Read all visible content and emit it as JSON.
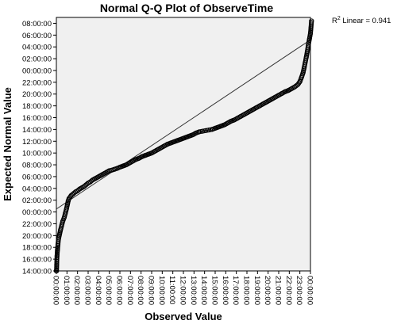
{
  "chart_data": {
    "type": "scatter",
    "title": "Normal Q-Q Plot of ObserveTime",
    "xlabel": "Observed Value",
    "ylabel": "Expected Normal Value",
    "annotation": {
      "label": "R",
      "superscript": "2",
      "text": " Linear = 0.941"
    },
    "x_unit": "hours",
    "xlim": [
      0,
      24
    ],
    "ylim": [
      -10,
      33
    ],
    "x_ticks": [
      {
        "value": 0,
        "label": "00:00:00"
      },
      {
        "value": 1,
        "label": "01:00:00"
      },
      {
        "value": 2,
        "label": "02:00:00"
      },
      {
        "value": 3,
        "label": "03:00:00"
      },
      {
        "value": 4,
        "label": "04:00:00"
      },
      {
        "value": 5,
        "label": "05:00:00"
      },
      {
        "value": 6,
        "label": "06:00:00"
      },
      {
        "value": 7,
        "label": "07:00:00"
      },
      {
        "value": 8,
        "label": "08:00:00"
      },
      {
        "value": 9,
        "label": "09:00:00"
      },
      {
        "value": 10,
        "label": "10:00:00"
      },
      {
        "value": 11,
        "label": "11:00:00"
      },
      {
        "value": 12,
        "label": "12:00:00"
      },
      {
        "value": 13,
        "label": "13:00:00"
      },
      {
        "value": 14,
        "label": "14:00:00"
      },
      {
        "value": 15,
        "label": "15:00:00"
      },
      {
        "value": 16,
        "label": "16:00:00"
      },
      {
        "value": 17,
        "label": "17:00:00"
      },
      {
        "value": 18,
        "label": "18:00:00"
      },
      {
        "value": 19,
        "label": "19:00:00"
      },
      {
        "value": 20,
        "label": "20:00:00"
      },
      {
        "value": 21,
        "label": "21:00:00"
      },
      {
        "value": 22,
        "label": "22:00:00"
      },
      {
        "value": 23,
        "label": "23:00:00"
      },
      {
        "value": 24,
        "label": "00:00:00"
      }
    ],
    "y_ticks": [
      {
        "value": -10,
        "label": "14:00:00"
      },
      {
        "value": -8,
        "label": "16:00:00"
      },
      {
        "value": -6,
        "label": "18:00:00"
      },
      {
        "value": -4,
        "label": "20:00:00"
      },
      {
        "value": -2,
        "label": "22:00:00"
      },
      {
        "value": 0,
        "label": "00:00:00"
      },
      {
        "value": 2,
        "label": "02:00:00"
      },
      {
        "value": 4,
        "label": "04:00:00"
      },
      {
        "value": 6,
        "label": "06:00:00"
      },
      {
        "value": 8,
        "label": "08:00:00"
      },
      {
        "value": 10,
        "label": "10:00:00"
      },
      {
        "value": 12,
        "label": "12:00:00"
      },
      {
        "value": 14,
        "label": "14:00:00"
      },
      {
        "value": 16,
        "label": "16:00:00"
      },
      {
        "value": 18,
        "label": "18:00:00"
      },
      {
        "value": 20,
        "label": "20:00:00"
      },
      {
        "value": 22,
        "label": "22:00:00"
      },
      {
        "value": 24,
        "label": "00:00:00"
      },
      {
        "value": 26,
        "label": "02:00:00"
      },
      {
        "value": 28,
        "label": "04:00:00"
      },
      {
        "value": 30,
        "label": "06:00:00"
      },
      {
        "value": 32,
        "label": "08:00:00"
      }
    ],
    "reference_line": {
      "points": [
        [
          0,
          0.5
        ],
        [
          24,
          29.2
        ]
      ]
    },
    "points": [
      [
        0.0,
        -11
      ],
      [
        0.03,
        -9
      ],
      [
        0.06,
        -7.5
      ],
      [
        0.1,
        -6.5
      ],
      [
        0.15,
        -5.5
      ],
      [
        0.2,
        -4.6
      ],
      [
        0.3,
        -3.8
      ],
      [
        0.4,
        -3.0
      ],
      [
        0.5,
        -2.3
      ],
      [
        0.6,
        -1.6
      ],
      [
        0.75,
        -0.9
      ],
      [
        0.85,
        -0.2
      ],
      [
        0.95,
        0.5
      ],
      [
        1.05,
        1.3
      ],
      [
        1.12,
        1.9
      ],
      [
        1.2,
        2.3
      ],
      [
        1.4,
        2.8
      ],
      [
        1.6,
        3.1
      ],
      [
        1.8,
        3.4
      ],
      [
        2.0,
        3.6
      ],
      [
        2.2,
        3.9
      ],
      [
        2.4,
        4.1
      ],
      [
        2.6,
        4.3
      ],
      [
        2.8,
        4.6
      ],
      [
        3.0,
        4.9
      ],
      [
        3.2,
        5.1
      ],
      [
        3.4,
        5.4
      ],
      [
        3.6,
        5.6
      ],
      [
        3.8,
        5.8
      ],
      [
        4.0,
        6.0
      ],
      [
        4.2,
        6.2
      ],
      [
        4.4,
        6.4
      ],
      [
        4.6,
        6.6
      ],
      [
        4.8,
        6.8
      ],
      [
        5.0,
        7.0
      ],
      [
        5.25,
        7.1
      ],
      [
        5.5,
        7.25
      ],
      [
        5.75,
        7.4
      ],
      [
        6.0,
        7.6
      ],
      [
        6.3,
        7.8
      ],
      [
        6.6,
        8.0
      ],
      [
        6.9,
        8.3
      ],
      [
        7.2,
        8.6
      ],
      [
        7.5,
        8.9
      ],
      [
        7.8,
        9.1
      ],
      [
        8.1,
        9.4
      ],
      [
        8.4,
        9.6
      ],
      [
        8.7,
        9.8
      ],
      [
        9.0,
        10.0
      ],
      [
        9.3,
        10.3
      ],
      [
        9.6,
        10.6
      ],
      [
        9.9,
        10.9
      ],
      [
        10.2,
        11.2
      ],
      [
        10.5,
        11.5
      ],
      [
        10.8,
        11.7
      ],
      [
        11.1,
        11.9
      ],
      [
        11.4,
        12.1
      ],
      [
        11.7,
        12.3
      ],
      [
        12.0,
        12.5
      ],
      [
        12.3,
        12.7
      ],
      [
        12.6,
        12.9
      ],
      [
        12.9,
        13.1
      ],
      [
        13.2,
        13.4
      ],
      [
        13.5,
        13.6
      ],
      [
        13.8,
        13.7
      ],
      [
        14.1,
        13.8
      ],
      [
        14.4,
        13.9
      ],
      [
        14.7,
        14.0
      ],
      [
        15.0,
        14.2
      ],
      [
        15.3,
        14.4
      ],
      [
        15.6,
        14.6
      ],
      [
        15.9,
        14.8
      ],
      [
        16.2,
        15.1
      ],
      [
        16.5,
        15.4
      ],
      [
        16.8,
        15.6
      ],
      [
        17.1,
        15.9
      ],
      [
        17.4,
        16.2
      ],
      [
        17.7,
        16.5
      ],
      [
        18.0,
        16.8
      ],
      [
        18.3,
        17.1
      ],
      [
        18.6,
        17.4
      ],
      [
        18.9,
        17.7
      ],
      [
        19.2,
        18.0
      ],
      [
        19.5,
        18.3
      ],
      [
        19.8,
        18.6
      ],
      [
        20.1,
        18.9
      ],
      [
        20.4,
        19.2
      ],
      [
        20.7,
        19.5
      ],
      [
        21.0,
        19.8
      ],
      [
        21.3,
        20.1
      ],
      [
        21.6,
        20.4
      ],
      [
        21.9,
        20.6
      ],
      [
        22.2,
        20.9
      ],
      [
        22.5,
        21.2
      ],
      [
        22.8,
        21.6
      ],
      [
        23.0,
        22.1
      ],
      [
        23.15,
        22.8
      ],
      [
        23.3,
        23.6
      ],
      [
        23.4,
        24.4
      ],
      [
        23.5,
        25.3
      ],
      [
        23.6,
        26.2
      ],
      [
        23.7,
        27.2
      ],
      [
        23.8,
        28.3
      ],
      [
        23.9,
        29.3
      ],
      [
        24.0,
        30.3
      ],
      [
        24.05,
        31.3
      ],
      [
        24.1,
        32.4
      ]
    ]
  }
}
